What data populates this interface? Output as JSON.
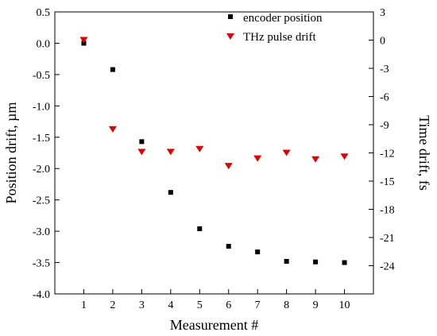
{
  "chart_data": {
    "type": "scatter",
    "title": "",
    "xlabel": "Measurement #",
    "ylabel_left": "Position drift, µm",
    "ylabel_right": "Time drift, fs",
    "x": [
      1,
      2,
      3,
      4,
      5,
      6,
      7,
      8,
      9,
      10
    ],
    "xlim": [
      0,
      11
    ],
    "xticks": [
      "1",
      "2",
      "3",
      "4",
      "5",
      "6",
      "7",
      "8",
      "9",
      "10"
    ],
    "ylim_left": [
      -4.0,
      0.5
    ],
    "yticks_left": [
      "0.5",
      "0.0",
      "-0.5",
      "-1.0",
      "-1.5",
      "-2.0",
      "-2.5",
      "-3.0",
      "-3.5",
      "-4.0"
    ],
    "ylim_right": [
      -27,
      3
    ],
    "yticks_right": [
      "3",
      "0",
      "-3",
      "-6",
      "-9",
      "-12",
      "-15",
      "-18",
      "-21",
      "-24"
    ],
    "grid": false,
    "legend_position": "top-right",
    "series": [
      {
        "name": "encoder position",
        "axis": "left",
        "marker": "square",
        "color": "#000000",
        "values": [
          0.0,
          -0.42,
          -1.57,
          -2.38,
          -2.96,
          -3.24,
          -3.33,
          -3.48,
          -3.49,
          -3.5
        ]
      },
      {
        "name": "THz pulse drift",
        "axis": "right",
        "marker": "triangle-down",
        "color": "#e00000",
        "values": [
          0.0,
          -9.5,
          -11.9,
          -11.9,
          -11.6,
          -13.4,
          -12.6,
          -12.0,
          -12.7,
          -12.4
        ]
      }
    ]
  }
}
